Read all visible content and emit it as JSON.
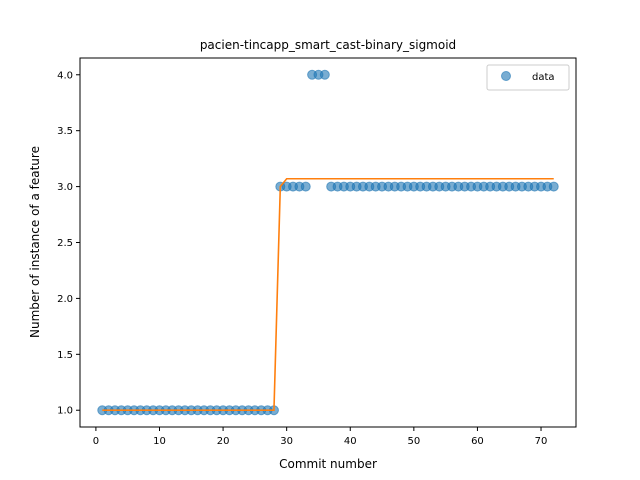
{
  "chart_data": {
    "type": "scatter",
    "title": "pacien-tincapp_smart_cast-binary_sigmoid",
    "xlabel": "Commit number",
    "ylabel": "Number of instance of a feature",
    "xlim": [
      -2.5,
      75.5
    ],
    "ylim": [
      0.85,
      4.15
    ],
    "xticks": [
      0,
      10,
      20,
      30,
      40,
      50,
      60,
      70
    ],
    "yticks": [
      1.0,
      1.5,
      2.0,
      2.5,
      3.0,
      3.5,
      4.0
    ],
    "xtick_labels": [
      "0",
      "10",
      "20",
      "30",
      "40",
      "50",
      "60",
      "70"
    ],
    "ytick_labels": [
      "1.0",
      "1.5",
      "2.0",
      "2.5",
      "3.0",
      "3.5",
      "4.0"
    ],
    "grid": false,
    "legend": {
      "position": "top-right",
      "entries": [
        "data"
      ]
    },
    "series": [
      {
        "name": "data",
        "kind": "scatter",
        "color": "#1f77b4",
        "x": [
          1,
          2,
          3,
          4,
          5,
          6,
          7,
          8,
          9,
          10,
          11,
          12,
          13,
          14,
          15,
          16,
          17,
          18,
          19,
          20,
          21,
          22,
          23,
          24,
          25,
          26,
          27,
          28,
          29,
          30,
          31,
          32,
          33,
          34,
          35,
          36,
          37,
          38,
          39,
          40,
          41,
          42,
          43,
          44,
          45,
          46,
          47,
          48,
          49,
          50,
          51,
          52,
          53,
          54,
          55,
          56,
          57,
          58,
          59,
          60,
          61,
          62,
          63,
          64,
          65,
          66,
          67,
          68,
          69,
          70,
          71,
          72
        ],
        "y": [
          1,
          1,
          1,
          1,
          1,
          1,
          1,
          1,
          1,
          1,
          1,
          1,
          1,
          1,
          1,
          1,
          1,
          1,
          1,
          1,
          1,
          1,
          1,
          1,
          1,
          1,
          1,
          1,
          3,
          3,
          3,
          3,
          3,
          4,
          4,
          4,
          3,
          3,
          3,
          3,
          3,
          3,
          3,
          3,
          3,
          3,
          3,
          3,
          3,
          3,
          3,
          3,
          3,
          3,
          3,
          3,
          3,
          3,
          3,
          3,
          3,
          3,
          3,
          3,
          3,
          3,
          3,
          3,
          3,
          3,
          3,
          3
        ]
      },
      {
        "kind": "line",
        "color": "#ff7f0e",
        "x": [
          1,
          28,
          29,
          30,
          72
        ],
        "y": [
          1.0,
          1.0,
          3.0,
          3.07,
          3.07
        ]
      }
    ]
  }
}
